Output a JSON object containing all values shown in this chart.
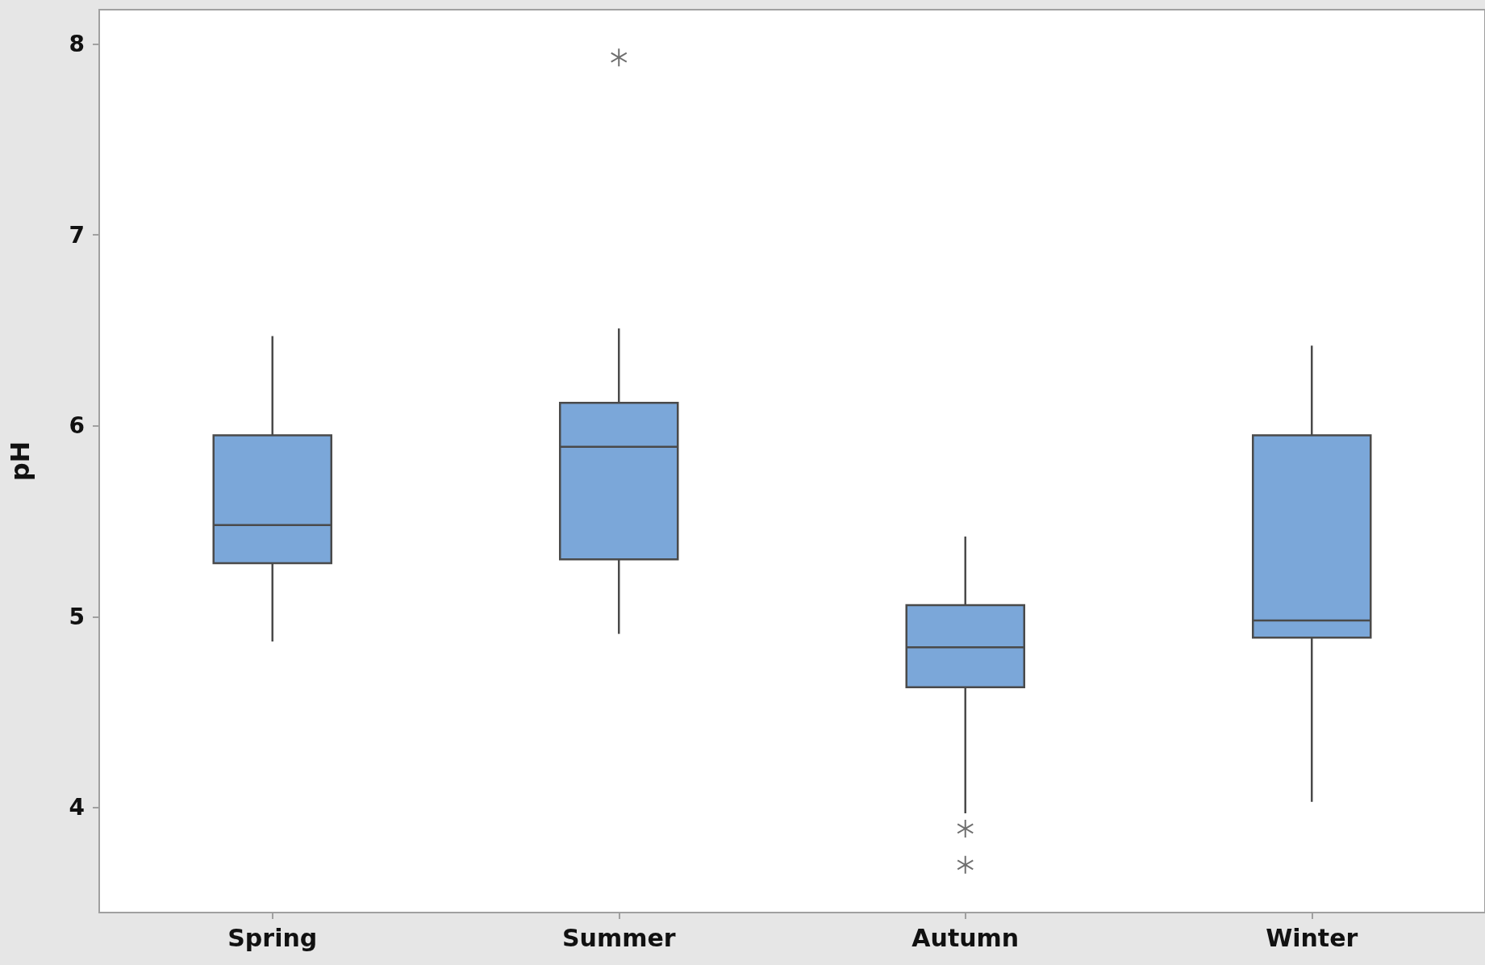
{
  "chart_data": {
    "type": "box",
    "ylabel": "pH",
    "categories": [
      "Spring",
      "Summer",
      "Autumn",
      "Winter"
    ],
    "color": "#7ba7d9",
    "boxes": [
      {
        "low": 4.87,
        "q1": 5.28,
        "median": 5.48,
        "q3": 5.95,
        "high": 6.47
      },
      {
        "low": 4.91,
        "q1": 5.3,
        "median": 5.89,
        "q3": 6.12,
        "high": 6.51,
        "outliers": [
          7.93
        ]
      },
      {
        "low": 3.97,
        "q1": 4.63,
        "median": 4.84,
        "q3": 5.06,
        "high": 5.42,
        "outliers": [
          3.89,
          3.7
        ]
      },
      {
        "low": 4.03,
        "q1": 4.89,
        "median": 4.98,
        "q3": 5.95,
        "high": 6.42
      }
    ],
    "ylim": [
      3.45,
      8.18
    ],
    "yticks": [
      4,
      5,
      6,
      7,
      8
    ]
  }
}
